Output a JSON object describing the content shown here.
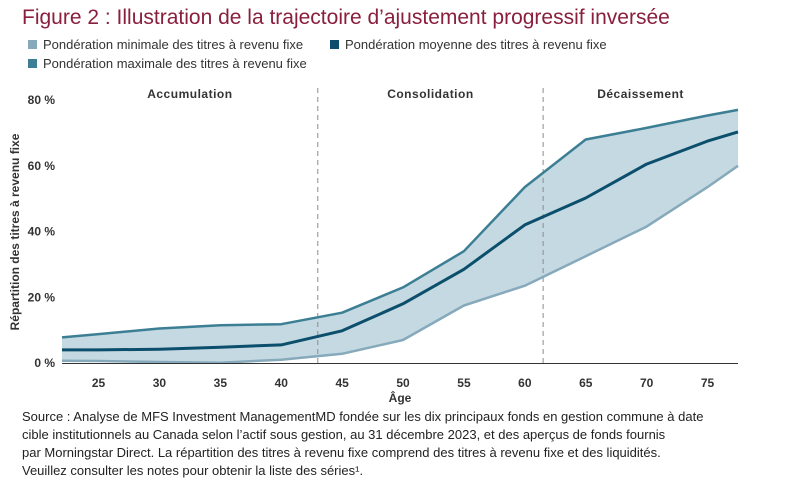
{
  "title": "Figure 2 : Illustration de la trajectoire d’ajustement progressif inversée",
  "colors": {
    "title": "#8a1f3d",
    "min": "#86aabb",
    "mean": "#0b4f6c",
    "max": "#3c7f94",
    "band": "#c5d9e2"
  },
  "chart_data": {
    "type": "line",
    "ylabel": "Répartition des titres à revenu fixe",
    "xlabel": "Âge",
    "xlim": [
      22,
      77.5
    ],
    "ylim": [
      0,
      80
    ],
    "x_ticks": [
      25,
      30,
      35,
      40,
      45,
      50,
      55,
      60,
      65,
      70,
      75
    ],
    "y_ticks": [
      "0 %",
      "20 %",
      "40 %",
      "60 %",
      "80 %"
    ],
    "y_tick_values": [
      0,
      20,
      40,
      60,
      80
    ],
    "phases": [
      {
        "label": "Accumulation",
        "x_start": 22,
        "x_end": 43
      },
      {
        "label": "Consolidation",
        "x_start": 43,
        "x_end": 61.5
      },
      {
        "label": "Décaissement",
        "x_start": 61.5,
        "x_end": 77.5
      }
    ],
    "phase_dividers": [
      43,
      61.5
    ],
    "legend_position": "top-left",
    "series": [
      {
        "name": "Pondération minimale des titres à revenu fixe",
        "key": "min",
        "x": [
          22,
          25,
          30,
          35,
          40,
          45,
          50,
          55,
          60,
          65,
          70,
          75,
          77.5
        ],
        "values": [
          0.7,
          0.6,
          0.3,
          0.1,
          1,
          2.8,
          7,
          17.5,
          23.5,
          32.5,
          41.5,
          53.5,
          60
        ]
      },
      {
        "name": "Pondération moyenne des titres à revenu fixe",
        "key": "mean",
        "x": [
          22,
          25,
          30,
          35,
          40,
          45,
          50,
          55,
          60,
          65,
          70,
          75,
          77.5
        ],
        "values": [
          4,
          4,
          4.2,
          4.8,
          5.5,
          9.8,
          18,
          28.5,
          42,
          50.2,
          60.5,
          67.5,
          70.3
        ]
      },
      {
        "name": "Pondération maximale des titres à revenu fixe",
        "key": "max",
        "x": [
          22,
          25,
          30,
          35,
          40,
          45,
          50,
          55,
          60,
          65,
          70,
          75,
          77.5
        ],
        "values": [
          7.8,
          8.8,
          10.5,
          11.5,
          11.8,
          15.3,
          23,
          34,
          53.5,
          68,
          71.5,
          75.3,
          77
        ]
      }
    ]
  },
  "source_lines": [
    "Source : Analyse de MFS Investment ManagementMD fondée sur les dix principaux fonds en gestion commune à date",
    "cible institutionnels au Canada selon l’actif sous gestion, au 31 décembre 2023, et des aperçus de fonds fournis",
    "par Morningstar Direct. La répartition des titres à revenu fixe comprend des titres à revenu fixe et des liquidités.",
    "Veuillez consulter les notes pour obtenir la liste des séries¹."
  ]
}
